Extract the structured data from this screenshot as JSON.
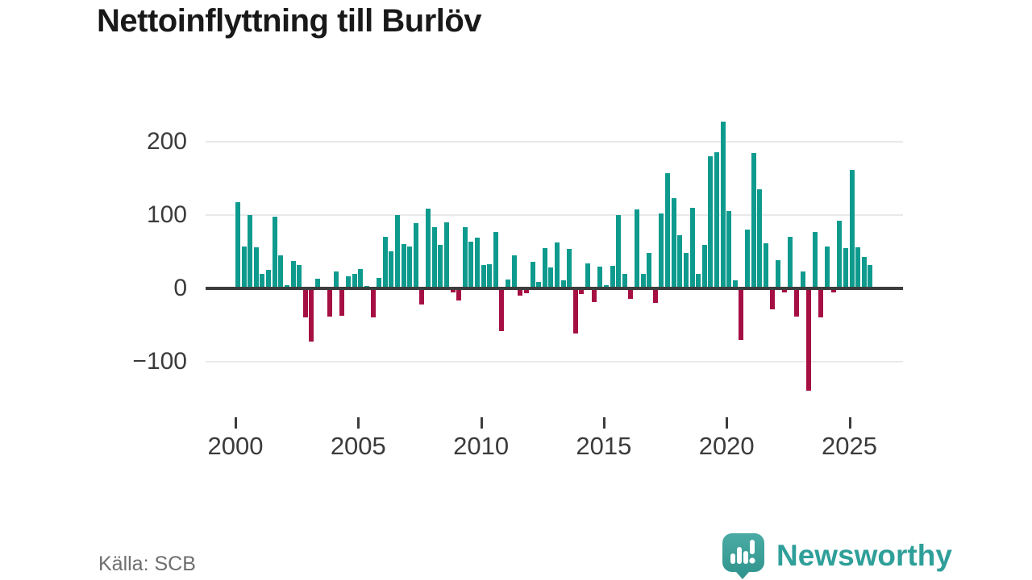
{
  "title": "Nettoinflyttning till Burlöv",
  "source": "Källa: SCB",
  "branding": {
    "name": "Newsworthy",
    "color": "#2f9f99"
  },
  "y_axis": {
    "labels": [
      "200",
      "100",
      "0",
      "−100"
    ],
    "tick_values": [
      200,
      100,
      0,
      -100
    ]
  },
  "x_axis": {
    "labels": [
      "2000",
      "2005",
      "2010",
      "2015",
      "2020",
      "2025"
    ],
    "tick_years": [
      2000,
      2005,
      2010,
      2015,
      2020,
      2025
    ]
  },
  "chart_data": {
    "type": "bar",
    "title": "Nettoinflyttning till Burlöv",
    "xlabel": "",
    "ylabel": "",
    "frequency": "quarterly",
    "x_start": "2000-Q1",
    "x_end": "2025-Q4",
    "ylim": [
      -172,
      240
    ],
    "grid": "horizontal",
    "legend": "none",
    "colors": {
      "positive": "#0e9b8e",
      "negative": "#a50f44"
    },
    "years": [
      2000,
      2001,
      2002,
      2003,
      2004,
      2005,
      2006,
      2007,
      2008,
      2009,
      2010,
      2011,
      2012,
      2013,
      2014,
      2015,
      2016,
      2017,
      2018,
      2019,
      2020,
      2021,
      2022,
      2023,
      2024,
      2025
    ],
    "values": [
      118,
      57,
      100,
      56,
      20,
      25,
      98,
      45,
      4,
      37,
      32,
      -40,
      -72,
      13,
      1,
      -38,
      23,
      -37,
      16,
      20,
      26,
      3,
      -40,
      14,
      70,
      51,
      100,
      60,
      57,
      89,
      -22,
      109,
      84,
      59,
      90,
      -6,
      -16,
      84,
      64,
      69,
      32,
      33,
      77,
      -58,
      12,
      45,
      -10,
      -7,
      36,
      9,
      55,
      29,
      63,
      11,
      54,
      -61,
      -8,
      34,
      -19,
      30,
      4,
      31,
      100,
      20,
      -14,
      108,
      20,
      48,
      -20,
      102,
      157,
      123,
      72,
      48,
      110,
      20,
      59,
      180,
      186,
      228,
      105,
      11,
      -70,
      80,
      185,
      135,
      61,
      -29,
      39,
      -6,
      70,
      -39,
      23,
      -140,
      77,
      -40,
      57,
      -5,
      92,
      55,
      162,
      56,
      43,
      32
    ]
  }
}
